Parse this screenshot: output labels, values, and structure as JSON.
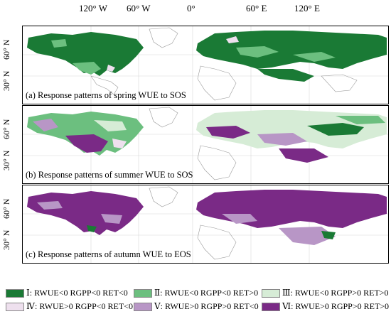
{
  "axes": {
    "lon_ticks": [
      "120° W",
      "60° W",
      "0°",
      "60° E",
      "120° E"
    ],
    "lat_ticks": [
      "60° N",
      "30° N"
    ]
  },
  "panels": [
    {
      "caption": "(a) Response patterns of spring WUE to SOS",
      "dominant": "dark-green"
    },
    {
      "caption": "(b) Response patterns of summer WUE to SOS",
      "dominant": "mixed"
    },
    {
      "caption": "(c) Response patterns of autumn WUE to EOS",
      "dominant": "dark-purple"
    }
  ],
  "legend": [
    {
      "label": "Ⅰ: RWUE<0 RGPP<0 RET<0",
      "color": "#1a7a35"
    },
    {
      "label": "Ⅱ: RWUE<0 RGPP<0 RET>0",
      "color": "#6cbf7f"
    },
    {
      "label": "Ⅲ: RWUE<0 RGPP>0 RET>0",
      "color": "#d6ecd6"
    },
    {
      "label": "Ⅳ: RWUE>0 RGPP<0 RET<0",
      "color": "#eee0ee"
    },
    {
      "label": "Ⅴ: RWUE>0 RGPP>0 RET<0",
      "color": "#b896c6"
    },
    {
      "label": "Ⅵ: RWUE>0 RGPP>0 RET>0",
      "color": "#7a2a86"
    }
  ]
}
